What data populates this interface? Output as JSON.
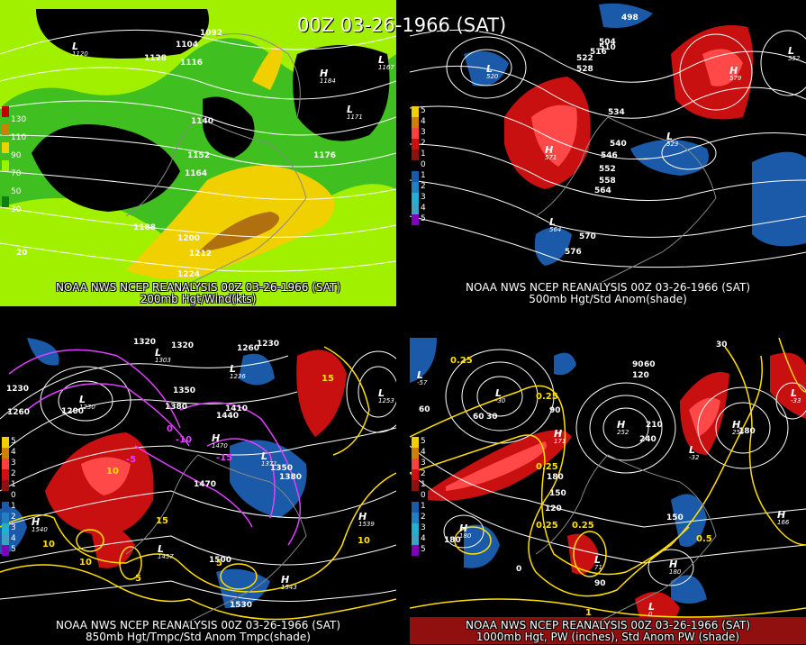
{
  "title": "00Z 03-26-1966 (SAT)",
  "colors": {
    "background": "#000000",
    "green_light": "#a0f000",
    "green_mid": "#40c020",
    "green_dark": "#108010",
    "yellow": "#f0d000",
    "orange": "#d08000",
    "warm_anom": "#c81010",
    "cold_anom": "#1a5aa8",
    "contour": "#ffffff",
    "temp_contour": "#ffe000",
    "cold_temp_contour": "#e040ff"
  },
  "panels": [
    {
      "id": "p1",
      "caption_line1": "NOAA NWS NCEP REANALYSIS 00Z 03-26-1966 (SAT)",
      "caption_line2": "200mb Hgt/Wind(kts)",
      "legend": [
        {
          "label": "130",
          "color": "#c00000"
        },
        {
          "label": "110",
          "color": "#d08000"
        },
        {
          "label": "90",
          "color": "#f0d000"
        },
        {
          "label": "70",
          "color": "#a0f000"
        },
        {
          "label": "50",
          "color": "#40c020"
        },
        {
          "label": "30",
          "color": "#108010"
        }
      ],
      "contour_labels": [
        "1092",
        "1104",
        "1116",
        "1128",
        "1140",
        "1152",
        "1164",
        "1176",
        "1188",
        "1200",
        "1212",
        "1224",
        "20"
      ],
      "centers": [
        {
          "type": "L",
          "value": "1120"
        },
        {
          "type": "H",
          "value": "1184"
        },
        {
          "type": "L",
          "value": "1167"
        },
        {
          "type": "L",
          "value": "1171"
        }
      ]
    },
    {
      "id": "p2",
      "caption_line1": "NOAA NWS NCEP REANALYSIS 00Z 03-26-1966 (SAT)",
      "caption_line2": "500mb Hgt/Std Anom(shade)",
      "legend": [
        {
          "label": "5",
          "color": "#f0d000"
        },
        {
          "label": "4",
          "color": "#d08000"
        },
        {
          "label": "3",
          "color": "#ff4040"
        },
        {
          "label": "2",
          "color": "#d01010"
        },
        {
          "label": "1",
          "color": "#901010"
        },
        {
          "label": "0",
          "color": "#000000"
        },
        {
          "label": "1",
          "color": "#1a5aa8"
        },
        {
          "label": "2",
          "color": "#2080c0"
        },
        {
          "label": "3",
          "color": "#20b0d0"
        },
        {
          "label": "4",
          "color": "#40a0c0"
        },
        {
          "label": "5",
          "color": "#8000c0"
        }
      ],
      "contour_labels": [
        "498",
        "504",
        "510",
        "516",
        "522",
        "528",
        "534",
        "540",
        "546",
        "552",
        "558",
        "564",
        "570",
        "576"
      ],
      "centers": [
        {
          "type": "L",
          "value": "520"
        },
        {
          "type": "H",
          "value": "571"
        },
        {
          "type": "H",
          "value": "579"
        },
        {
          "type": "L",
          "value": "523"
        },
        {
          "type": "L",
          "value": "564"
        },
        {
          "type": "L",
          "value": "552"
        }
      ]
    },
    {
      "id": "p3",
      "caption_line1": "NOAA NWS NCEP REANALYSIS 00Z 03-26-1966 (SAT)",
      "caption_line2": "850mb Hgt/Tmpc/Std Anom Tmpc(shade)",
      "legend": [
        {
          "label": "5",
          "color": "#f0d000"
        },
        {
          "label": "4",
          "color": "#d08000"
        },
        {
          "label": "3",
          "color": "#ff4040"
        },
        {
          "label": "2",
          "color": "#d01010"
        },
        {
          "label": "1",
          "color": "#901010"
        },
        {
          "label": "0",
          "color": "#000000"
        },
        {
          "label": "1",
          "color": "#1a5aa8"
        },
        {
          "label": "2",
          "color": "#2080c0"
        },
        {
          "label": "3",
          "color": "#20b0d0"
        },
        {
          "label": "4",
          "color": "#40a0c0"
        },
        {
          "label": "5",
          "color": "#8000c0"
        }
      ],
      "contour_labels": [
        "1320",
        "1320",
        "1290",
        "1260",
        "1230",
        "1350",
        "1380",
        "1410",
        "1440",
        "1470",
        "1500",
        "1530",
        "1260",
        "1230",
        "1200",
        "1350",
        "1380"
      ],
      "temp_labels": [
        "10",
        "10",
        "15",
        "10",
        "5",
        "5",
        "10",
        "15"
      ],
      "cold_temp_labels": [
        "0",
        "-10",
        "-15",
        "-5"
      ],
      "centers": [
        {
          "type": "L",
          "value": "1303"
        },
        {
          "type": "L",
          "value": "1230"
        },
        {
          "type": "L",
          "value": "1236"
        },
        {
          "type": "H",
          "value": "1470"
        },
        {
          "type": "L",
          "value": "1371"
        },
        {
          "type": "L",
          "value": "1253"
        },
        {
          "type": "H",
          "value": "1540"
        },
        {
          "type": "H",
          "value": "1539"
        },
        {
          "type": "L",
          "value": "1457"
        },
        {
          "type": "H",
          "value": "1543"
        }
      ]
    },
    {
      "id": "p4",
      "caption_line1": "NOAA NWS NCEP REANALYSIS 00Z 03-26-1966 (SAT)",
      "caption_line2": "1000mb Hgt, PW (inches), Std Anom PW (shade)",
      "legend": [
        {
          "label": "5",
          "color": "#f0d000"
        },
        {
          "label": "4",
          "color": "#d08000"
        },
        {
          "label": "3",
          "color": "#ff4040"
        },
        {
          "label": "2",
          "color": "#d01010"
        },
        {
          "label": "1",
          "color": "#901010"
        },
        {
          "label": "0",
          "color": "#000000"
        },
        {
          "label": "1",
          "color": "#1a5aa8"
        },
        {
          "label": "2",
          "color": "#2080c0"
        },
        {
          "label": "3",
          "color": "#20b0d0"
        },
        {
          "label": "4",
          "color": "#40a0c0"
        },
        {
          "label": "5",
          "color": "#8000c0"
        }
      ],
      "contour_labels": [
        "60",
        "30",
        "60",
        "90",
        "120",
        "150",
        "180",
        "210",
        "240",
        "30",
        "60",
        "90",
        "120",
        "180",
        "150",
        "180",
        "90",
        "0"
      ],
      "pw_labels": [
        "0.25",
        "0.25",
        "0.25",
        "0.25",
        "0.25",
        "0.5",
        "1"
      ],
      "centers": [
        {
          "type": "L",
          "value": "-57"
        },
        {
          "type": "L",
          "value": "-30"
        },
        {
          "type": "H",
          "value": "171"
        },
        {
          "type": "H",
          "value": "252"
        },
        {
          "type": "L",
          "value": "-32"
        },
        {
          "type": "H",
          "value": "255"
        },
        {
          "type": "L",
          "value": "-33"
        },
        {
          "type": "H",
          "value": "166"
        },
        {
          "type": "H",
          "value": "180"
        },
        {
          "type": "L",
          "value": "71"
        },
        {
          "type": "H",
          "value": "180"
        },
        {
          "type": "L",
          "value": "0"
        }
      ]
    }
  ]
}
